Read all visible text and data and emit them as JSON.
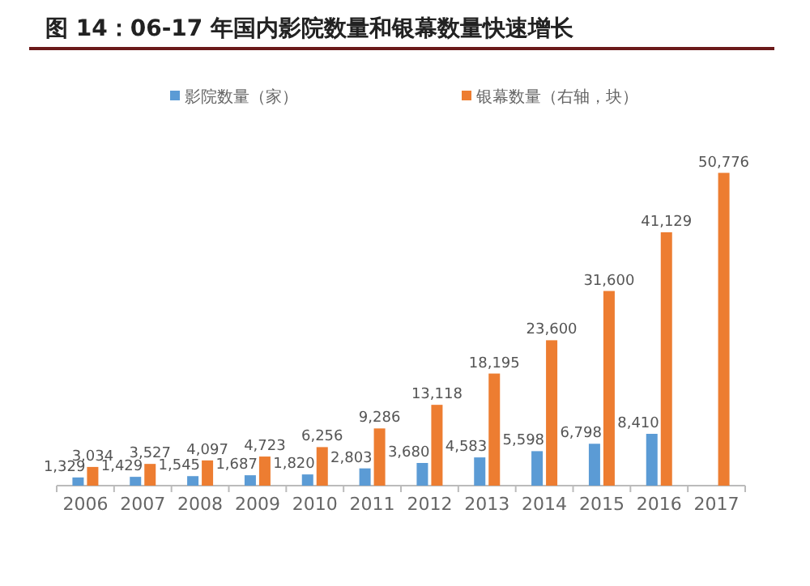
{
  "chart_data": {
    "type": "bar",
    "title": "图 14：06-17 年国内影院数量和银幕数量快速增长",
    "categories": [
      "2006",
      "2007",
      "2008",
      "2009",
      "2010",
      "2011",
      "2012",
      "2013",
      "2014",
      "2015",
      "2016",
      "2017"
    ],
    "series": [
      {
        "name": "影院数量（家）",
        "color": "#5b9bd5",
        "values": [
          1329,
          1429,
          1545,
          1687,
          1820,
          2803,
          3680,
          4583,
          5598,
          6798,
          8410,
          null
        ],
        "value_labels": [
          "1,329",
          "1,429",
          "1,545",
          "1,687",
          "1,820",
          "2,803",
          "3,680",
          "4,583",
          "5,598",
          "6,798",
          "8,410",
          null
        ]
      },
      {
        "name": "银幕数量（右轴，块）",
        "color": "#ed7d31",
        "values": [
          3034,
          3527,
          4097,
          4723,
          6256,
          9286,
          13118,
          18195,
          23600,
          31600,
          41129,
          50776
        ],
        "value_labels": [
          "3,034",
          "3,527",
          "4,097",
          "4,723",
          "6,256",
          "9,286",
          "13,118",
          "18,195",
          "23,600",
          "31,600",
          "41,129",
          "50,776"
        ]
      }
    ],
    "legend": "top"
  }
}
